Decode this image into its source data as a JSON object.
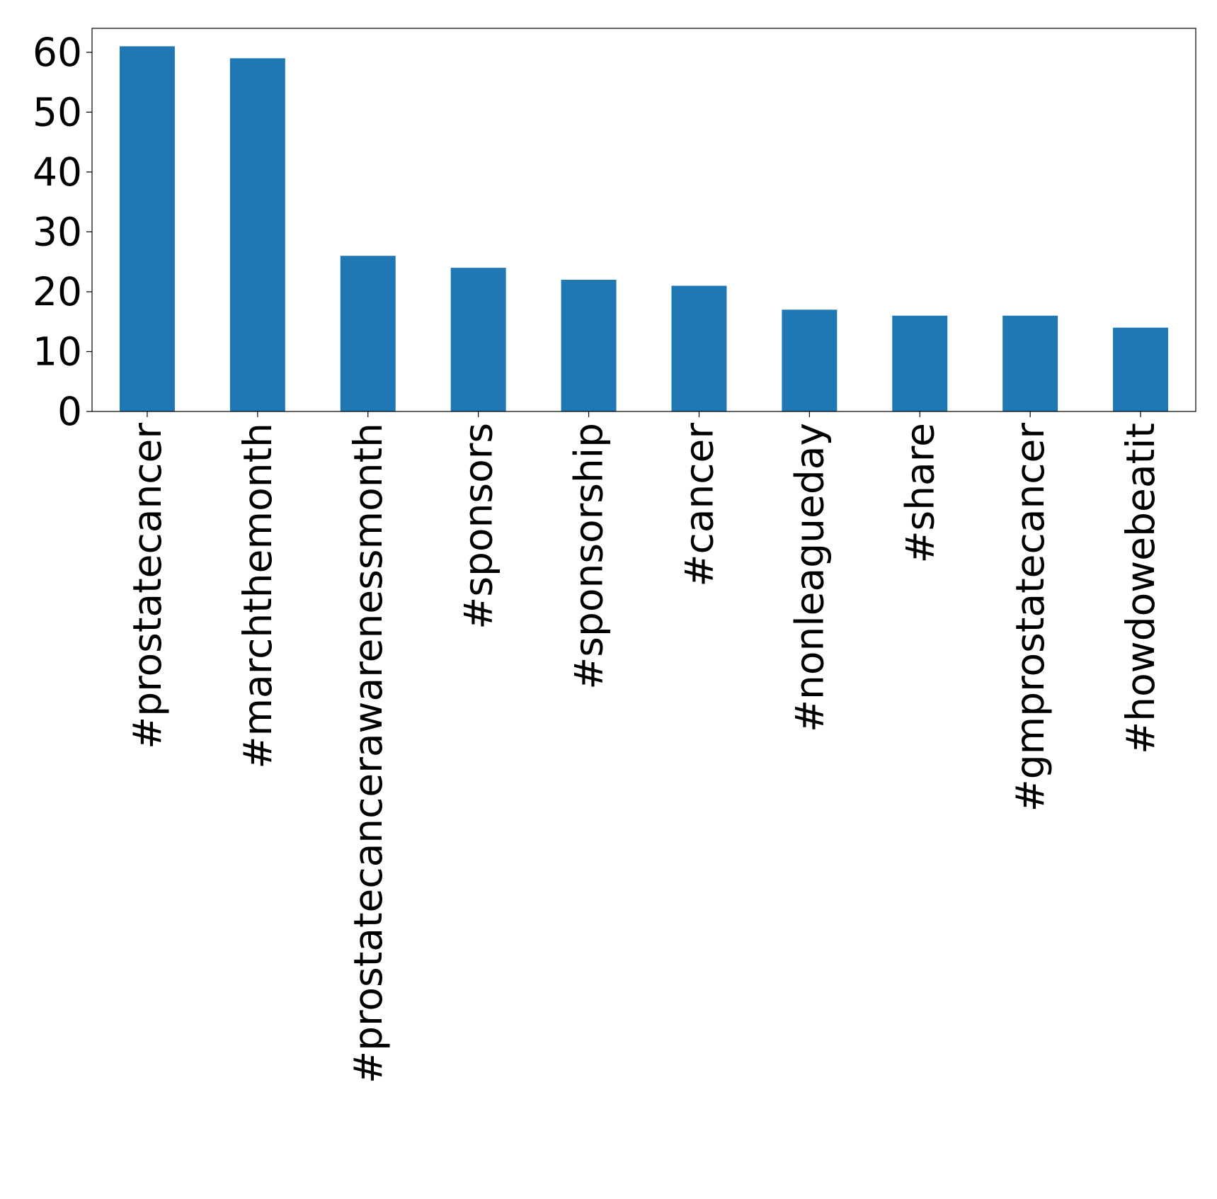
{
  "chart_data": {
    "type": "bar",
    "title": "",
    "xlabel": "",
    "ylabel": "",
    "categories": [
      "#prostatecancer",
      "#marchthemonth",
      "#prostatecancerawarenessmonth",
      "#sponsors",
      "#sponsorship",
      "#cancer",
      "#nonleagueday",
      "#share",
      "#gmprostatecancer",
      "#howdowebeatit"
    ],
    "values": [
      61,
      59,
      26,
      24,
      22,
      21,
      17,
      16,
      16,
      14
    ],
    "ylim": [
      0,
      64
    ],
    "yticks": [
      0,
      10,
      20,
      30,
      40,
      50,
      60
    ],
    "ytick_labels": [
      "0",
      "10",
      "20",
      "30",
      "40",
      "50",
      "60"
    ],
    "bar_color": "#1f77b4",
    "grid": false,
    "legend": "none"
  }
}
